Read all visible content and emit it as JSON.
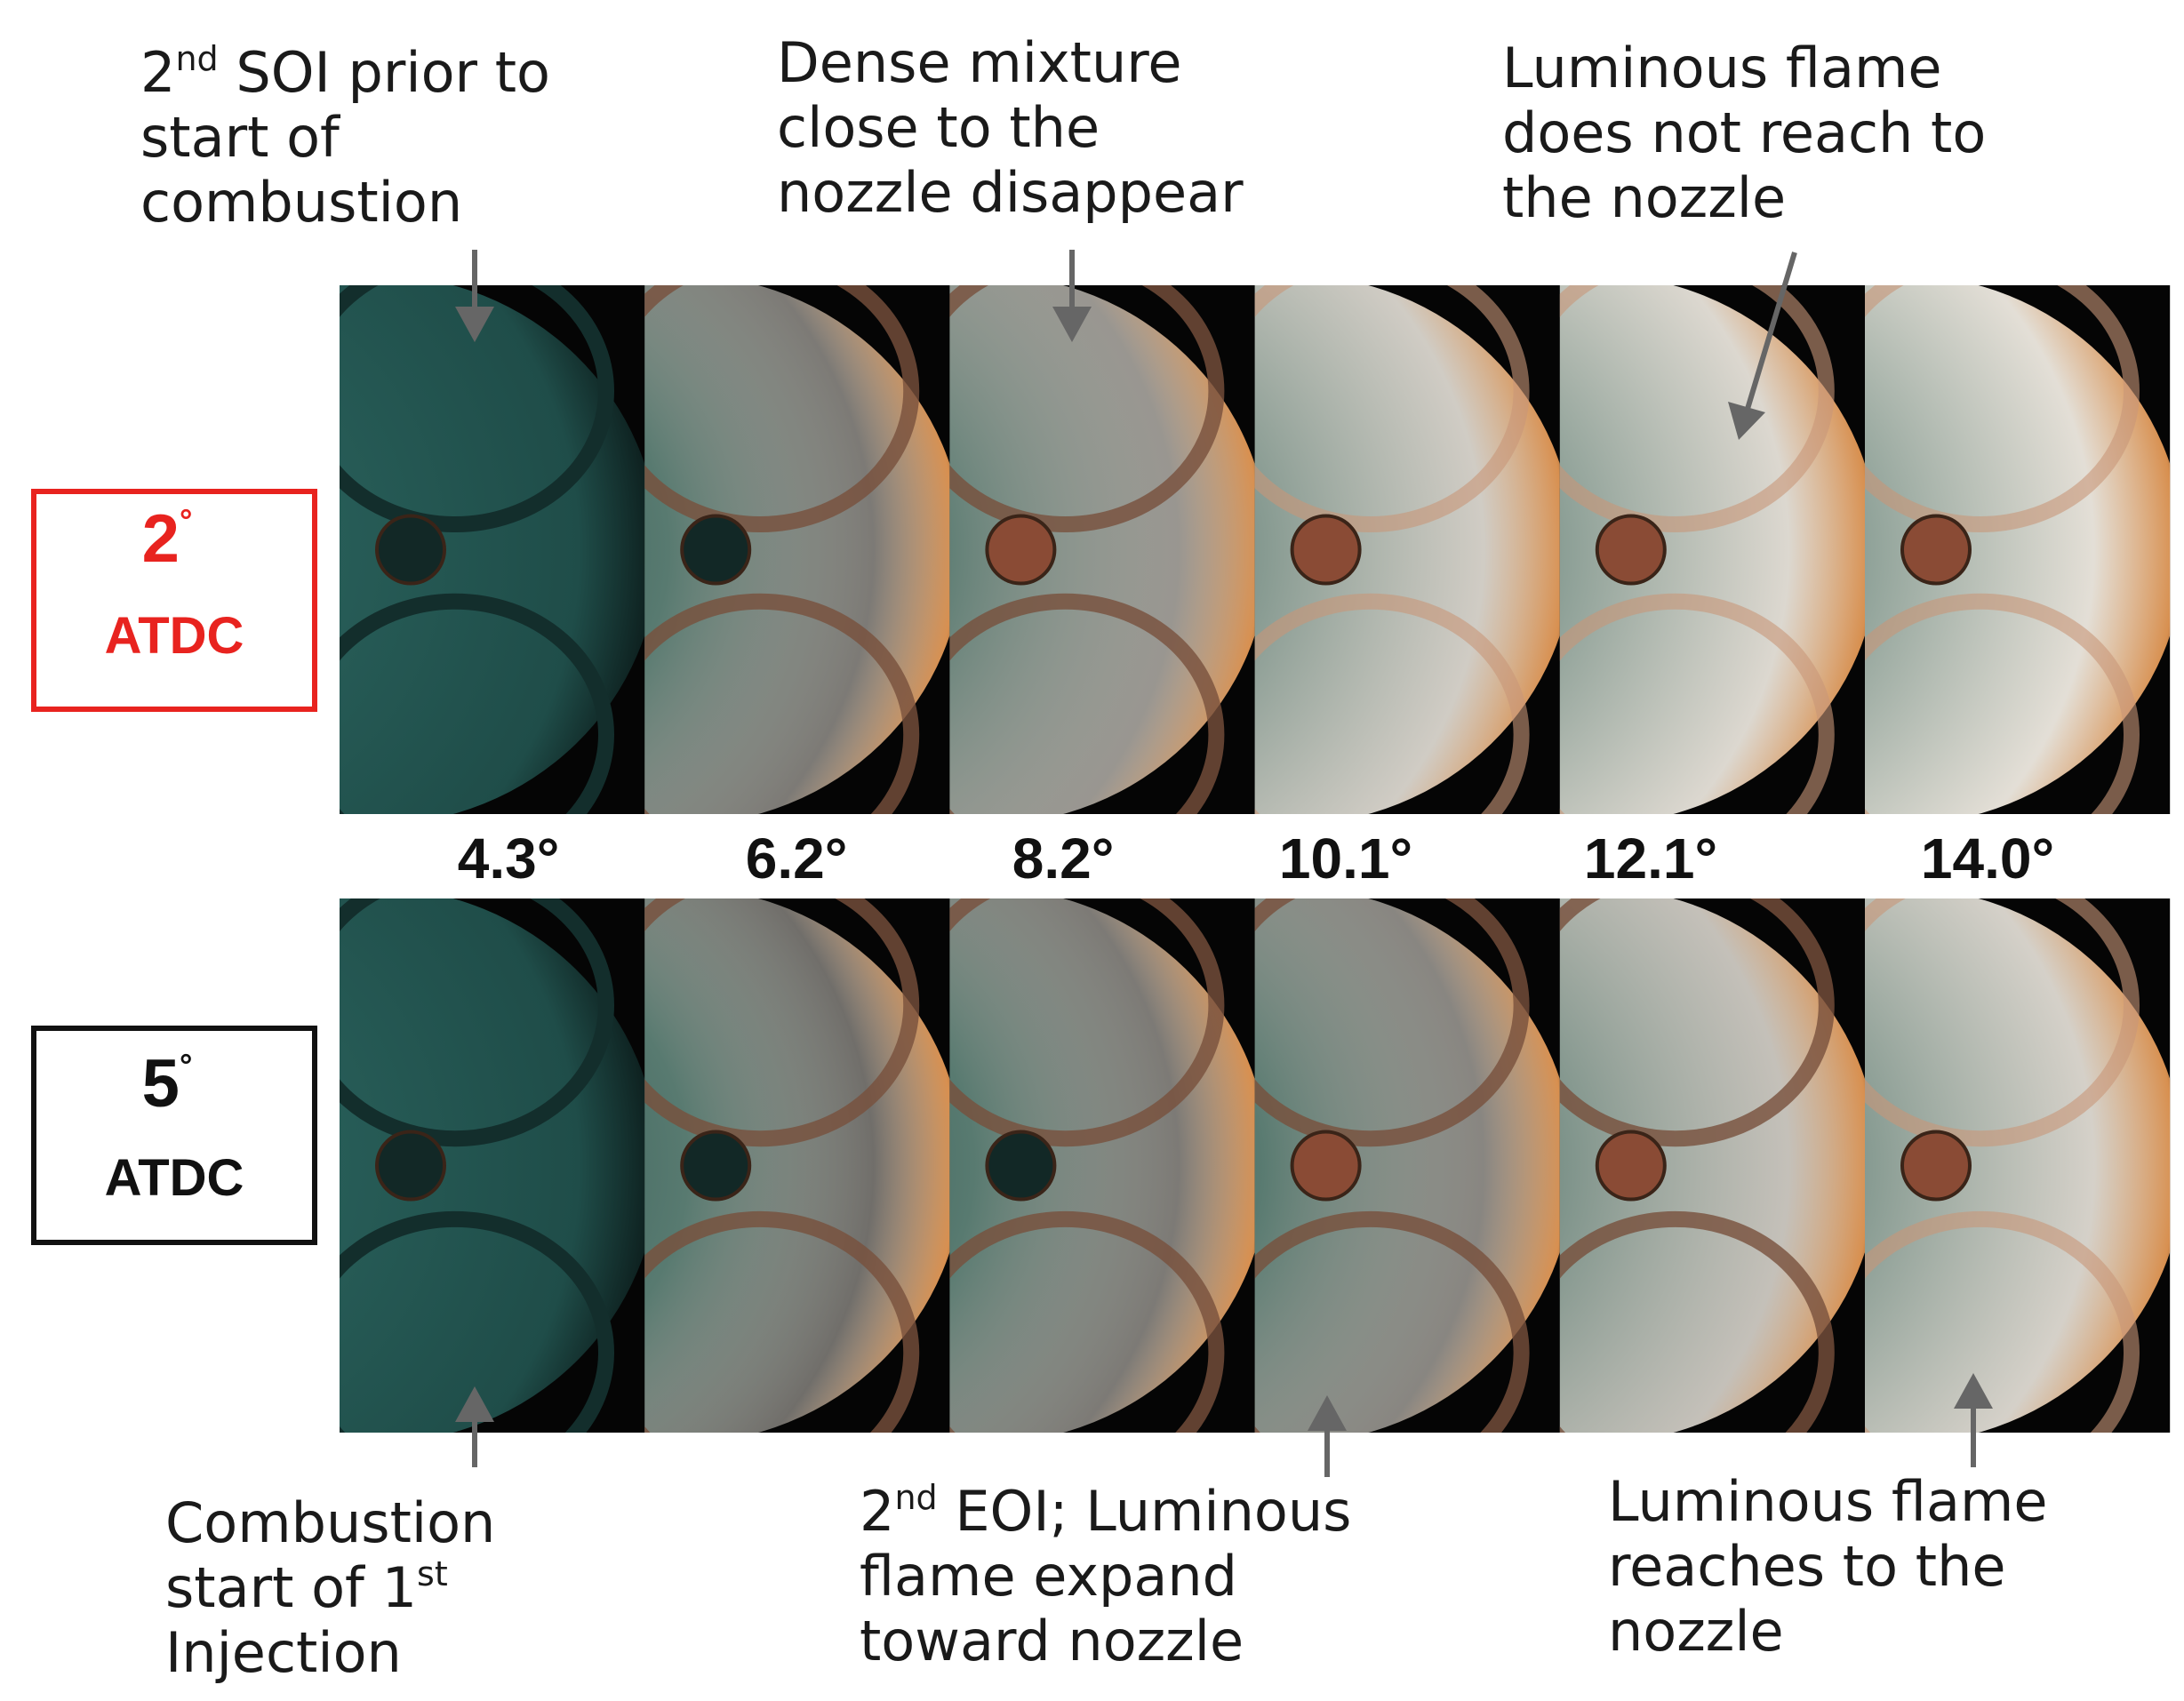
{
  "annotations": [
    {
      "lines": [
        [
          {
            "text": "2"
          },
          {
            "text": "nd",
            "sup": true
          },
          {
            "text": " SOI prior to"
          }
        ],
        [
          {
            "text": "start of"
          }
        ],
        [
          {
            "text": "combustion"
          }
        ]
      ]
    },
    {
      "lines": [
        [
          {
            "text": "Dense mixture"
          }
        ],
        [
          {
            "text": "close to the"
          }
        ],
        [
          {
            "text": "nozzle disappear"
          }
        ]
      ]
    },
    {
      "lines": [
        [
          {
            "text": "Luminous flame"
          }
        ],
        [
          {
            "text": "does not reach to"
          }
        ],
        [
          {
            "text": "the nozzle"
          }
        ]
      ]
    },
    {
      "lines": [
        [
          {
            "text": "Combustion"
          }
        ],
        [
          {
            "text": "start of 1"
          },
          {
            "text": "st",
            "sup": true
          }
        ],
        [
          {
            "text": "Injection"
          }
        ]
      ]
    },
    {
      "lines": [
        [
          {
            "text": "2"
          },
          {
            "text": "nd",
            "sup": true
          },
          {
            "text": " EOI; Luminous"
          }
        ],
        [
          {
            "text": "flame expand"
          }
        ],
        [
          {
            "text": "toward nozzle"
          }
        ]
      ]
    },
    {
      "lines": [
        [
          {
            "text": "Luminous flame"
          }
        ],
        [
          {
            "text": "reaches to the"
          }
        ],
        [
          {
            "text": "nozzle"
          }
        ]
      ]
    }
  ],
  "rows": [
    {
      "value": [
        {
          "text": "2"
        },
        {
          "text": "°",
          "sup": true
        }
      ],
      "unit": "ATDC",
      "color": "#e8231f"
    },
    {
      "value": [
        {
          "text": "5"
        },
        {
          "text": "°",
          "sup": true
        }
      ],
      "unit": "ATDC",
      "color": "#111111"
    }
  ],
  "angles": [
    "4.3°",
    "6.2°",
    "8.2°",
    "10.1°",
    "12.1°",
    "14.0°"
  ]
}
